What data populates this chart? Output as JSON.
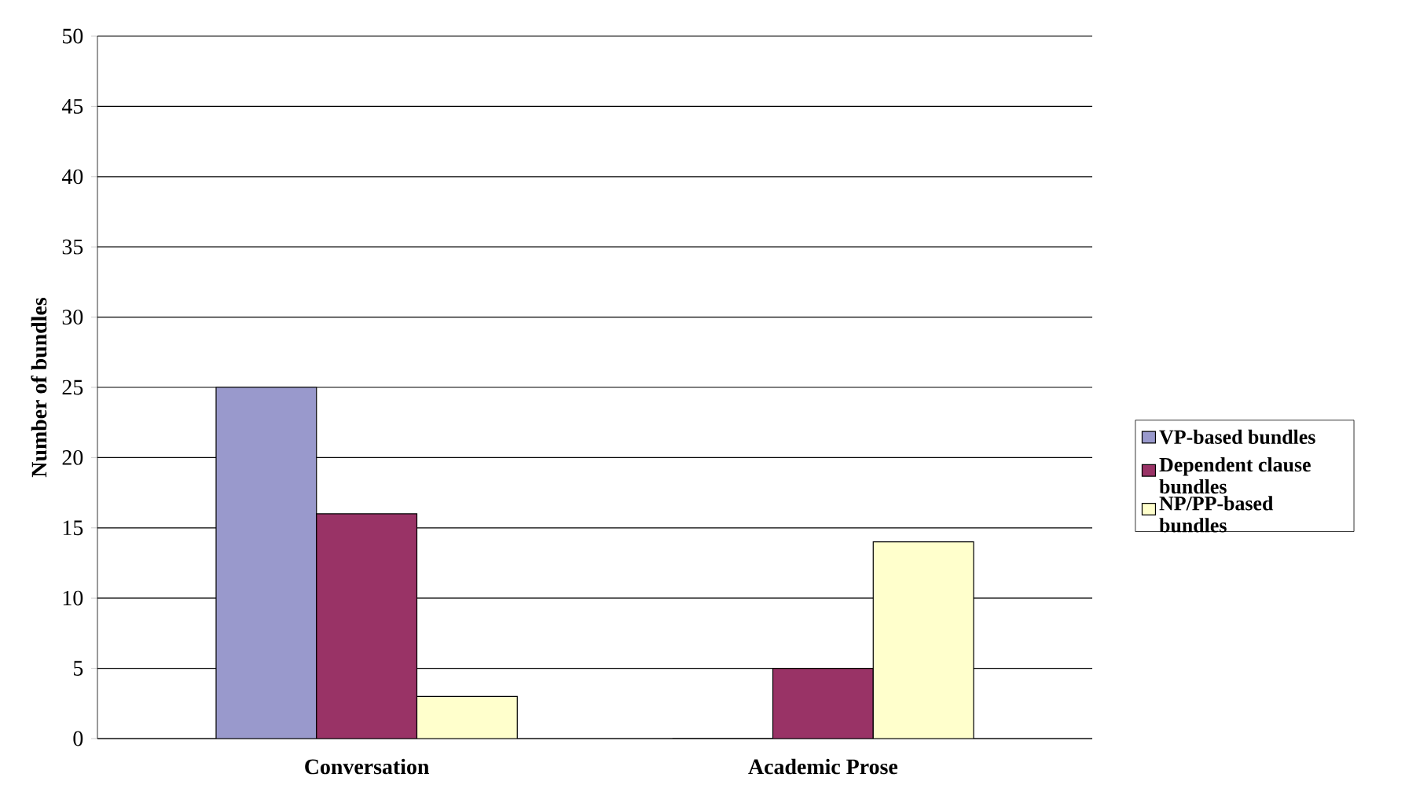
{
  "chart_data": {
    "type": "bar",
    "ylabel": "Number of bundles",
    "categories": [
      "Conversation",
      "Academic Prose"
    ],
    "series": [
      {
        "name": "VP-based bundles",
        "color": "#9999cc",
        "values": [
          25,
          0
        ]
      },
      {
        "name": "Dependent clause bundles",
        "color": "#993366",
        "values": [
          16,
          5
        ]
      },
      {
        "name": "NP/PP-based bundles",
        "color": "#ffffcc",
        "values": [
          3,
          14
        ]
      }
    ],
    "ylim": [
      0,
      50
    ],
    "yticks": [
      0,
      5,
      10,
      15,
      20,
      25,
      30,
      35,
      40,
      45,
      50
    ],
    "grid": "y",
    "legend": "right"
  }
}
